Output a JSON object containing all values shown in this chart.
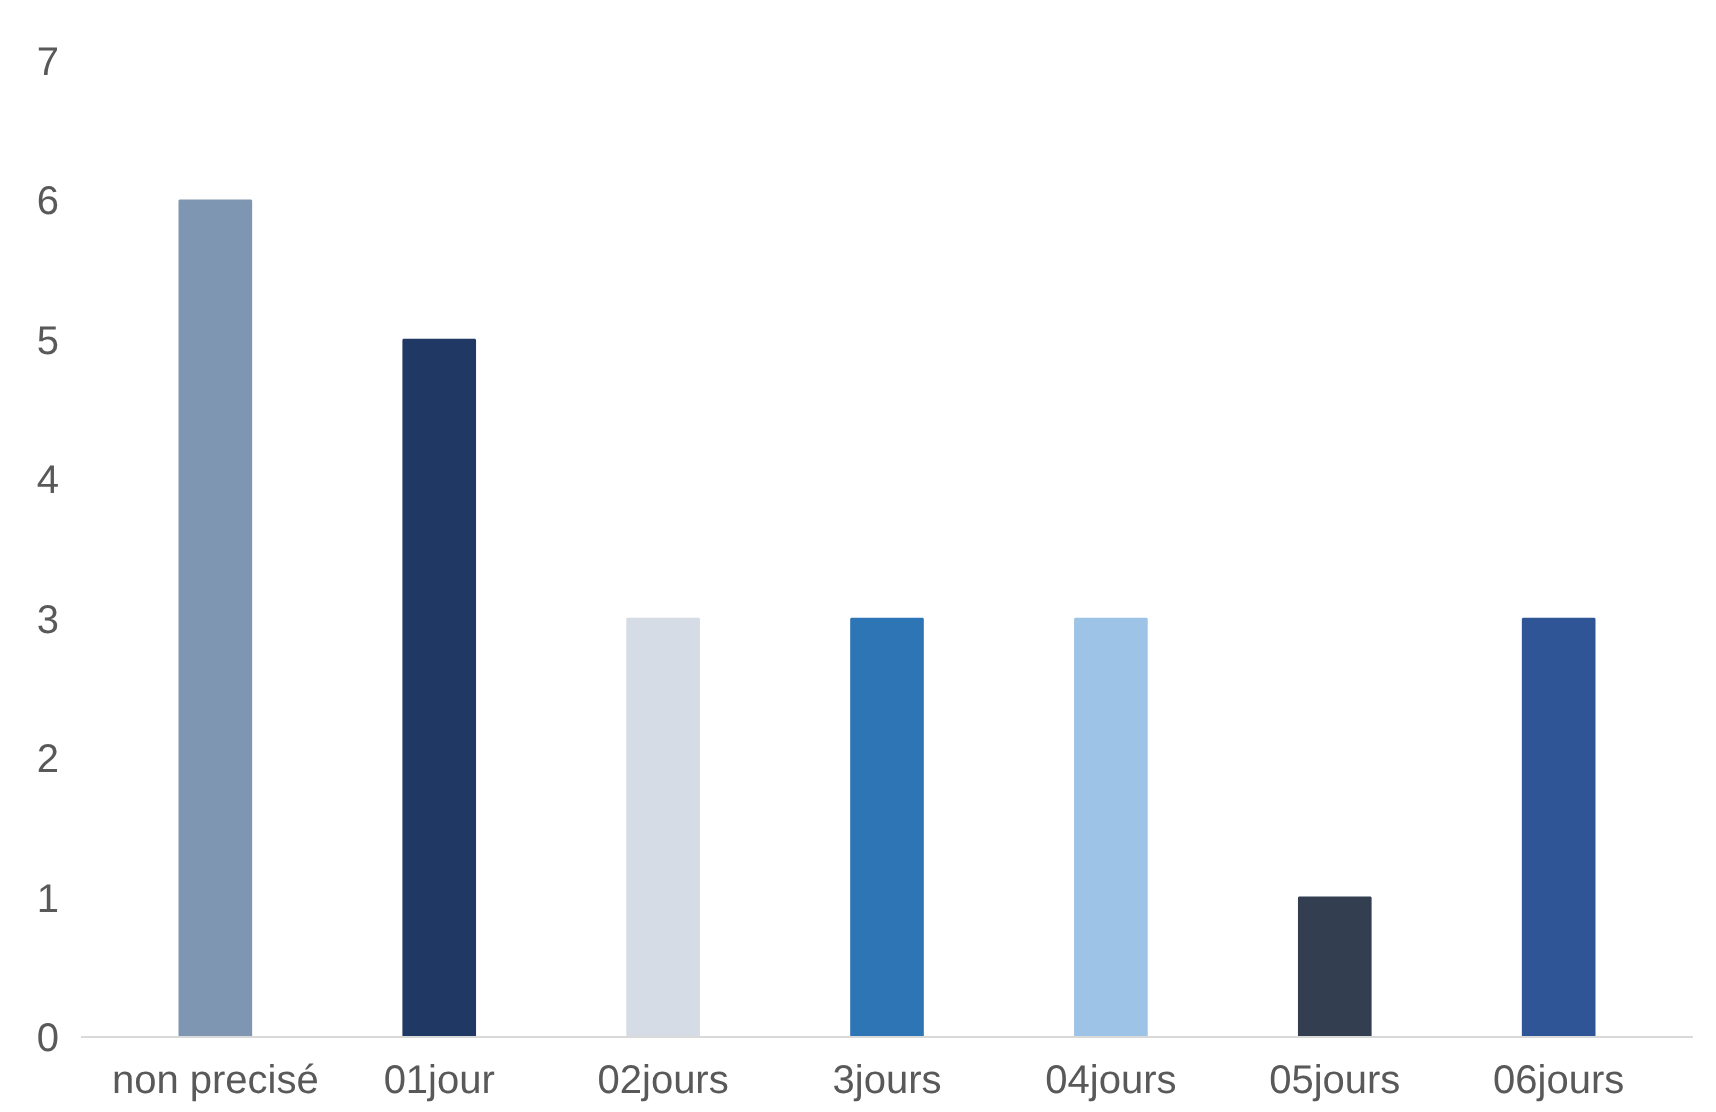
{
  "chart_data": {
    "type": "bar",
    "categories": [
      "non precisé",
      "01jour",
      "02jours",
      "3jours",
      "04jours",
      "05jours",
      "06jours"
    ],
    "values": [
      6,
      5,
      3,
      3,
      3,
      1,
      3
    ],
    "colors": [
      "#7f96b2",
      "#203864",
      "#d6dce5",
      "#2e75b6",
      "#9dc3e6",
      "#333f50",
      "#2f5597"
    ],
    "ylim": [
      0,
      7
    ],
    "yticks": [
      0,
      1,
      2,
      3,
      4,
      5,
      6,
      7
    ],
    "grid": false
  }
}
